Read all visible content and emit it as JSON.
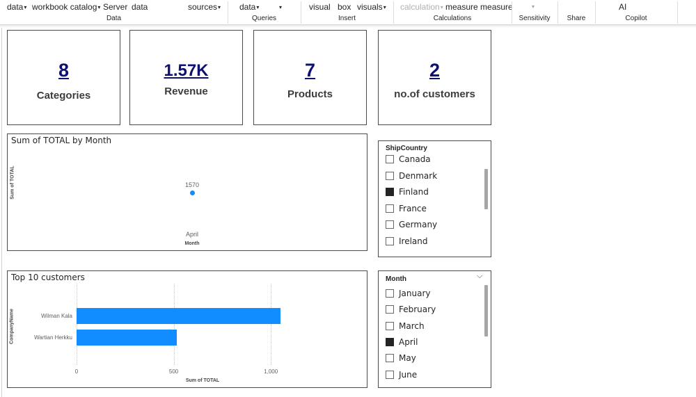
{
  "ribbon": {
    "items": [
      {
        "label": "data",
        "caret": true,
        "disabled": false
      },
      {
        "label": "workbook catalog",
        "caret": true,
        "disabled": false
      },
      {
        "label": "Server",
        "caret": false,
        "disabled": false
      },
      {
        "label": "data",
        "caret": false,
        "disabled": false
      },
      {
        "label": "sources",
        "caret": true,
        "disabled": false
      },
      {
        "label": "data",
        "caret": true,
        "disabled": false
      },
      {
        "label": "visual",
        "caret": false,
        "disabled": false
      },
      {
        "label": "box",
        "caret": false,
        "disabled": false
      },
      {
        "label": "visuals",
        "caret": true,
        "disabled": false
      },
      {
        "label": "calculation",
        "caret": true,
        "disabled": true
      },
      {
        "label": "measure measure",
        "caret": false,
        "disabled": false
      },
      {
        "label": "AI",
        "caret": false,
        "disabled": false
      }
    ],
    "groups": [
      "Data",
      "Queries",
      "Insert",
      "Calculations",
      "Sensitivity",
      "Share",
      "Copilot"
    ]
  },
  "cards": [
    {
      "value": "8",
      "label": "Categories"
    },
    {
      "value": "1.57K",
      "label": "Revenue"
    },
    {
      "value": "7",
      "label": "Products"
    },
    {
      "value": "2",
      "label": "no.of customers"
    }
  ],
  "month_chart": {
    "title": "Sum of TOTAL by Month",
    "chart_data": {
      "type": "scatter",
      "categories": [
        "April"
      ],
      "values": [
        1570
      ],
      "data_labels": [
        "1570"
      ],
      "xlabel": "Month",
      "ylabel": "Sum of TOTAL"
    }
  },
  "customers_chart": {
    "title": "Top 10 customers",
    "chart_data": {
      "type": "bar",
      "orientation": "horizontal",
      "categories": [
        "Wilman Kala",
        "Wartian Herkku"
      ],
      "values": [
        1050,
        515
      ],
      "xlabel": "Sum of TOTAL",
      "ylabel": "CompanyName",
      "xlim": [
        0,
        1200
      ],
      "ticks": [
        0,
        500,
        1000
      ],
      "tick_labels": [
        "0",
        "500",
        "1,000"
      ],
      "color": "#118dff"
    }
  },
  "ship_slicer": {
    "title": "ShipCountry",
    "items": [
      {
        "label": "Canada",
        "checked": false
      },
      {
        "label": "Denmark",
        "checked": false
      },
      {
        "label": "Finland",
        "checked": true
      },
      {
        "label": "France",
        "checked": false
      },
      {
        "label": "Germany",
        "checked": false
      },
      {
        "label": "Ireland",
        "checked": false
      }
    ]
  },
  "month_slicer": {
    "title": "Month",
    "items": [
      {
        "label": "January",
        "checked": false
      },
      {
        "label": "February",
        "checked": false
      },
      {
        "label": "March",
        "checked": false
      },
      {
        "label": "April",
        "checked": true
      },
      {
        "label": "May",
        "checked": false
      },
      {
        "label": "June",
        "checked": false
      }
    ]
  }
}
